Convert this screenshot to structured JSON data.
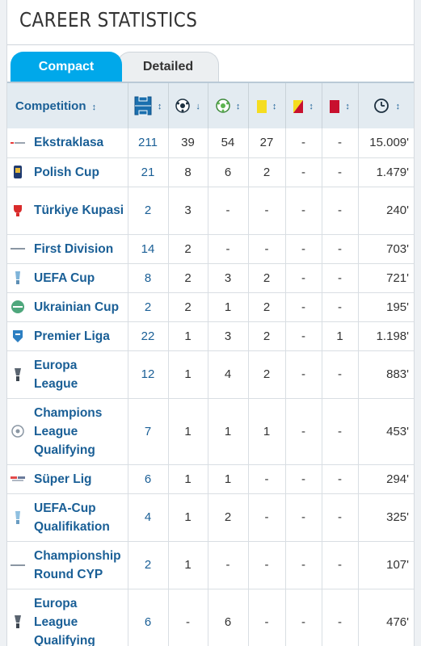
{
  "title": "CAREER STATISTICS",
  "tabs": {
    "compact": "Compact",
    "detailed": "Detailed"
  },
  "table": {
    "header": {
      "competition": "Competition",
      "sort_symbol": "↕"
    },
    "rows": [
      {
        "competition": "Ekstraklasa",
        "apps": "211",
        "goals": "39",
        "assists": "54",
        "yellow": "27",
        "second_yellow": "-",
        "red": "-",
        "minutes": "15.009'",
        "logo": "ekstraklasa-logo-icon"
      },
      {
        "competition": "Polish Cup",
        "apps": "21",
        "goals": "8",
        "assists": "6",
        "yellow": "2",
        "second_yellow": "-",
        "red": "-",
        "minutes": "1.479'",
        "logo": "polish-cup-logo-icon"
      },
      {
        "competition": "Türkiye Kupasi",
        "apps": "2",
        "goals": "3",
        "assists": "-",
        "yellow": "-",
        "second_yellow": "-",
        "red": "-",
        "minutes": "240'",
        "logo": "turkiye-kupasi-logo-icon"
      },
      {
        "competition": "First Division",
        "apps": "14",
        "goals": "2",
        "assists": "-",
        "yellow": "-",
        "second_yellow": "-",
        "red": "-",
        "minutes": "703'",
        "logo": "first-division-logo-icon"
      },
      {
        "competition": "UEFA Cup",
        "apps": "8",
        "goals": "2",
        "assists": "3",
        "yellow": "2",
        "second_yellow": "-",
        "red": "-",
        "minutes": "721'",
        "logo": "uefa-cup-logo-icon"
      },
      {
        "competition": "Ukrainian Cup",
        "apps": "2",
        "goals": "2",
        "assists": "1",
        "yellow": "2",
        "second_yellow": "-",
        "red": "-",
        "minutes": "195'",
        "logo": "ukrainian-cup-logo-icon"
      },
      {
        "competition": "Premier Liga",
        "apps": "22",
        "goals": "1",
        "assists": "3",
        "yellow": "2",
        "second_yellow": "-",
        "red": "1",
        "minutes": "1.198'",
        "logo": "premier-liga-logo-icon"
      },
      {
        "competition": "Europa League",
        "apps": "12",
        "goals": "1",
        "assists": "4",
        "yellow": "2",
        "second_yellow": "-",
        "red": "-",
        "minutes": "883'",
        "logo": "europa-league-logo-icon"
      },
      {
        "competition": "Champions League Qualifying",
        "apps": "7",
        "goals": "1",
        "assists": "1",
        "yellow": "1",
        "second_yellow": "-",
        "red": "-",
        "minutes": "453'",
        "logo": "champions-league-logo-icon"
      },
      {
        "competition": "Süper Lig",
        "apps": "6",
        "goals": "1",
        "assists": "1",
        "yellow": "-",
        "second_yellow": "-",
        "red": "-",
        "minutes": "294'",
        "logo": "super-lig-logo-icon"
      },
      {
        "competition": "UEFA-Cup Qualifikation",
        "apps": "4",
        "goals": "1",
        "assists": "2",
        "yellow": "-",
        "second_yellow": "-",
        "red": "-",
        "minutes": "325'",
        "logo": "uefa-cup-qualifikation-logo-icon"
      },
      {
        "competition": "Championship Round CYP",
        "apps": "2",
        "goals": "1",
        "assists": "-",
        "yellow": "-",
        "second_yellow": "-",
        "red": "-",
        "minutes": "107'",
        "logo": "championship-round-cyp-logo-icon"
      },
      {
        "competition": "Europa League Qualifying",
        "apps": "6",
        "goals": "-",
        "assists": "6",
        "yellow": "-",
        "second_yellow": "-",
        "red": "-",
        "minutes": "476'",
        "logo": "europa-league-qualifying-logo-icon"
      }
    ]
  },
  "colors": {
    "accent": "#00a8ea",
    "link": "#1a5f96",
    "header_bg": "#e3ebf1",
    "yellow_card": "#f5dd20",
    "red_card": "#c8102e"
  }
}
